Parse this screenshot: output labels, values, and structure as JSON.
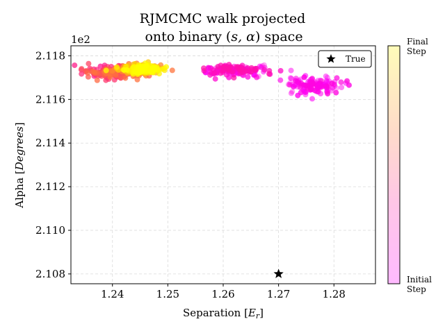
{
  "chart_data": {
    "type": "scatter",
    "title_line1": "RJMCMC walk projected",
    "title_line2_prefix": "onto binary (",
    "title_line2_math": "s, α",
    "title_line2_suffix": ") space",
    "xlabel_prefix": "Separation [",
    "xlabel_math": "E",
    "xlabel_sub": "r",
    "xlabel_suffix": "]",
    "ylabel_prefix": "Alpha [",
    "ylabel_math": "Degrees",
    "ylabel_suffix": "]",
    "y_offset_text": "1e2",
    "xlim": [
      1.2325,
      1.2875
    ],
    "ylim": [
      2.10755,
      2.11846
    ],
    "x_ticks": [
      1.24,
      1.25,
      1.26,
      1.27,
      1.28
    ],
    "x_tick_labels": [
      "1.24",
      "1.25",
      "1.26",
      "1.27",
      "1.28"
    ],
    "y_ticks": [
      2.108,
      2.11,
      2.112,
      2.114,
      2.116,
      2.118
    ],
    "y_tick_labels": [
      "2.108",
      "2.110",
      "2.112",
      "2.114",
      "2.116",
      "2.118"
    ],
    "grid": true,
    "legend": {
      "placement": "top-right",
      "label": "True",
      "marker": "star"
    },
    "true_point": {
      "x": 1.27,
      "y": 2.108
    },
    "colorbar": {
      "top_label_line1": "Final",
      "top_label_line2": "Step",
      "bottom_label_line1": "Initial",
      "bottom_label_line2": "Step",
      "colors": [
        "#ff00ff",
        "#ff1493",
        "#ff6347",
        "#ffd700",
        "#ffff00"
      ]
    },
    "walk_clusters": [
      {
        "x_center": 1.2395,
        "y_center": 2.11725,
        "x_spread": 0.0045,
        "y_spread": 0.00028,
        "n": 160,
        "progress_min": 0.25,
        "progress_max": 0.55
      },
      {
        "x_center": 1.2445,
        "y_center": 2.11738,
        "x_spread": 0.0035,
        "y_spread": 0.00022,
        "n": 150,
        "progress_min": 0.45,
        "progress_max": 0.75
      },
      {
        "x_center": 1.2455,
        "y_center": 2.1174,
        "x_spread": 0.003,
        "y_spread": 0.00015,
        "n": 180,
        "progress_min": 0.85,
        "progress_max": 1.0
      },
      {
        "x_center": 1.262,
        "y_center": 2.11735,
        "x_spread": 0.0055,
        "y_spread": 0.00022,
        "n": 150,
        "progress_min": 0.0,
        "progress_max": 0.2
      },
      {
        "x_center": 1.2765,
        "y_center": 2.11665,
        "x_spread": 0.005,
        "y_spread": 0.00035,
        "n": 120,
        "progress_min": 0.0,
        "progress_max": 0.08
      }
    ]
  }
}
